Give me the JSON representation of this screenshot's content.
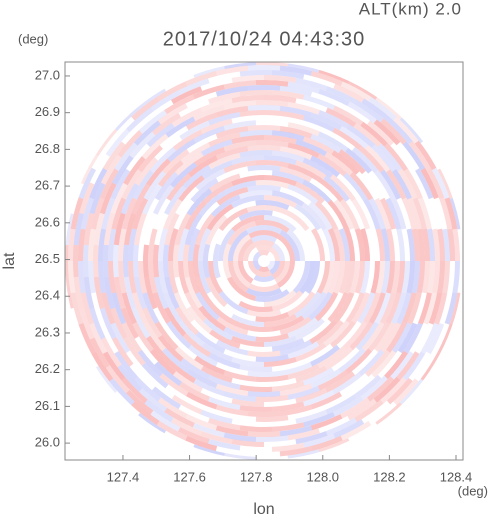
{
  "chart_data": {
    "type": "ppi",
    "title": "2017/10/24 04:43:30",
    "annotation": "ALT(km) 2.0",
    "y_unit": "(deg)",
    "x_unit": "(deg)",
    "xlabel": "lon",
    "ylabel": "lat",
    "xlim": [
      127.226,
      128.421
    ],
    "ylim": [
      25.954,
      27.038
    ],
    "xticks": [
      127.4,
      127.6,
      127.8,
      {
        "value": 128,
        "label": "128.0"
      },
      128.2,
      128.4
    ],
    "yticks": [
      {
        "value": 26,
        "label": "26.0"
      },
      26.1,
      26.2,
      26.3,
      26.4,
      26.5,
      26.6,
      26.7,
      26.8,
      26.9,
      {
        "value": 27,
        "label": "27.0"
      }
    ]
  }
}
